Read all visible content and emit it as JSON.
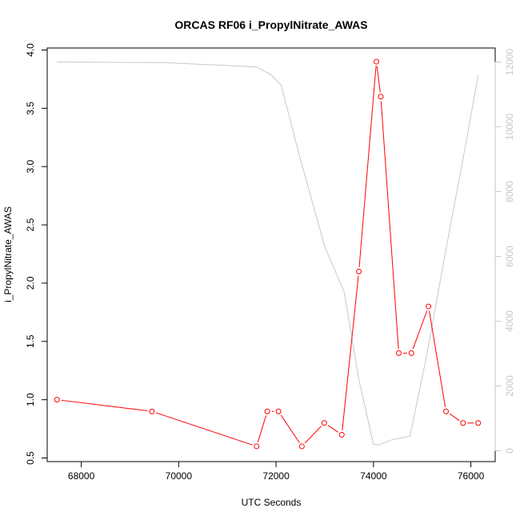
{
  "chart_data": {
    "type": "line",
    "title": "ORCAS RF06 i_PropylNitrate_AWAS",
    "xlabel": "UTC Seconds",
    "ylabel": "i_PropylNitrate_AWAS",
    "xlim": [
      67300,
      76500
    ],
    "ylim": [
      0.5,
      4.0
    ],
    "y2lim": [
      0,
      12000
    ],
    "x_ticks": [
      68000,
      70000,
      72000,
      74000,
      76000
    ],
    "y_ticks": [
      0.5,
      1.0,
      1.5,
      2.0,
      2.5,
      3.0,
      3.5,
      4.0
    ],
    "y2_ticks": [
      0,
      2000,
      4000,
      6000,
      8000,
      10000,
      12000
    ],
    "series": [
      {
        "color": "#ff0000",
        "marker": "open-circle",
        "x": [
          67500,
          69450,
          71600,
          71820,
          72050,
          72530,
          72990,
          73350,
          73700,
          74060,
          74150,
          74520,
          74780,
          75130,
          75490,
          75840,
          76150
        ],
        "y": [
          1.0,
          0.9,
          0.6,
          0.9,
          0.9,
          0.6,
          0.8,
          0.7,
          2.1,
          3.9,
          3.6,
          1.4,
          1.4,
          1.8,
          0.9,
          0.8,
          0.8
        ]
      },
      {
        "color": "#c8c8c8",
        "axis": "right",
        "x": [
          67500,
          69700,
          71600,
          71900,
          72100,
          72500,
          73000,
          73400,
          73700,
          74000,
          74100,
          74400,
          74750,
          75100,
          75500,
          75900,
          76150
        ],
        "y": [
          12000,
          11980,
          11850,
          11600,
          11300,
          9000,
          6300,
          4900,
          2200,
          200,
          180,
          350,
          450,
          3000,
          6300,
          9500,
          11600
        ]
      }
    ]
  }
}
